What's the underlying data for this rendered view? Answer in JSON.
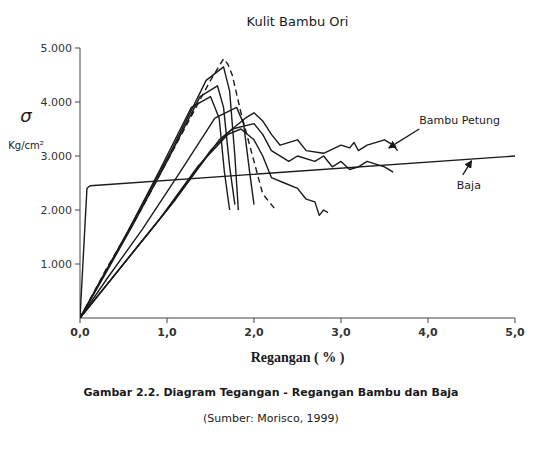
{
  "chart_data": {
    "type": "line",
    "title": "Kulit Bambu Ori",
    "xlabel": "Regangan ( % )",
    "ylabel": [
      "σ",
      "Kg/cm²"
    ],
    "color": "#1a1a1a",
    "grid": false,
    "xlim": [
      0,
      5.0
    ],
    "ylim": [
      0,
      5000
    ],
    "xticks": [
      {
        "value": 0.0,
        "label": "0,0"
      },
      {
        "value": 1.0,
        "label": "1,0"
      },
      {
        "value": 2.0,
        "label": "2,0"
      },
      {
        "value": 3.0,
        "label": "3,0"
      },
      {
        "value": 4.0,
        "label": "4,0"
      },
      {
        "value": 5.0,
        "label": "5,0"
      }
    ],
    "yticks": [
      {
        "value": 1000,
        "label": "1.000"
      },
      {
        "value": 2000,
        "label": "2.000"
      },
      {
        "value": 3000,
        "label": "3.000"
      },
      {
        "value": 4000,
        "label": "4.000"
      },
      {
        "value": 5000,
        "label": "5.000"
      }
    ],
    "series": [
      {
        "line_style": "solid",
        "x": [
          0,
          0.08,
          0.1,
          0.12,
          5.0
        ],
        "values": [
          0,
          2400,
          2430,
          2450,
          3000
        ]
      },
      {
        "line_style": "solid",
        "x": [
          0,
          0.55,
          1.1,
          1.6,
          1.9,
          2.0,
          2.1,
          2.2,
          2.3,
          2.5,
          2.6,
          2.8,
          3.0,
          3.1,
          3.15,
          3.2,
          3.3,
          3.5,
          3.6,
          3.65
        ],
        "values": [
          0,
          1100,
          2200,
          3300,
          3700,
          3800,
          3650,
          3400,
          3200,
          3300,
          3100,
          3050,
          3200,
          3150,
          3250,
          3100,
          3200,
          3300,
          3200,
          3100
        ]
      },
      {
        "line_style": "solid",
        "x": [
          0,
          0.5,
          1.0,
          1.5,
          1.75,
          2.0,
          2.1,
          2.2,
          2.4,
          2.5,
          2.7,
          2.8,
          2.9,
          3.0,
          3.1,
          3.2,
          3.3,
          3.5,
          3.6
        ],
        "values": [
          0,
          1000,
          2000,
          3100,
          3500,
          3600,
          3400,
          3100,
          2900,
          3000,
          2900,
          3000,
          2800,
          2900,
          2750,
          2800,
          2900,
          2800,
          2700
        ]
      },
      {
        "line_style": "solid",
        "x": [
          0,
          0.45,
          0.9,
          1.35,
          1.7,
          1.85,
          2.0,
          2.1,
          2.2,
          2.35,
          2.5,
          2.6,
          2.7,
          2.75,
          2.8,
          2.85
        ],
        "values": [
          0,
          900,
          1800,
          2800,
          3400,
          3500,
          3300,
          3000,
          2600,
          2500,
          2400,
          2200,
          2150,
          1900,
          2000,
          1950
        ]
      },
      {
        "line_style": "dashed",
        "x": [
          0,
          0.3,
          0.7,
          1.1,
          1.5,
          1.65,
          1.7,
          1.75,
          1.85,
          1.95,
          2.05,
          2.1,
          2.15,
          2.2,
          2.25
        ],
        "values": [
          0,
          900,
          2000,
          3200,
          4400,
          4800,
          4700,
          4500,
          3800,
          3200,
          2600,
          2300,
          2200,
          2100,
          2000
        ]
      },
      {
        "line_style": "solid",
        "x": [
          0,
          0.28,
          0.65,
          1.05,
          1.45,
          1.65,
          1.72,
          1.78,
          1.82
        ],
        "values": [
          0,
          800,
          1900,
          3100,
          4400,
          4650,
          4200,
          3000,
          2000
        ]
      },
      {
        "line_style": "solid",
        "x": [
          0,
          0.25,
          0.6,
          1.0,
          1.38,
          1.58,
          1.65,
          1.72,
          1.78
        ],
        "values": [
          0,
          700,
          1700,
          2900,
          4100,
          4300,
          3900,
          2800,
          2100
        ]
      },
      {
        "line_style": "solid",
        "x": [
          0,
          0.22,
          0.55,
          0.92,
          1.28,
          1.5,
          1.6,
          1.66,
          1.72
        ],
        "values": [
          0,
          650,
          1600,
          2750,
          3900,
          4100,
          3700,
          2700,
          2000
        ]
      },
      {
        "line_style": "solid",
        "x": [
          0,
          0.32,
          0.72,
          1.15,
          1.55,
          1.8,
          1.88,
          1.95,
          2.0
        ],
        "values": [
          0,
          750,
          1650,
          2700,
          3700,
          3900,
          3600,
          2700,
          2100
        ]
      }
    ],
    "annotations": [
      {
        "text": "Bambu Petung",
        "x": 3.55,
        "y": 3150,
        "text_x": 3.9,
        "text_y": 3500
      },
      {
        "text": "Baja",
        "x": 4.5,
        "y": 2910,
        "text_x": 4.4,
        "text_y": 2650
      },
      {
        "text": "Gambar 2.2. Diagram Tegangan - Regangan Bambu dan Baja"
      },
      {
        "text": "(Sumber: Morisco, 1999)"
      }
    ]
  }
}
